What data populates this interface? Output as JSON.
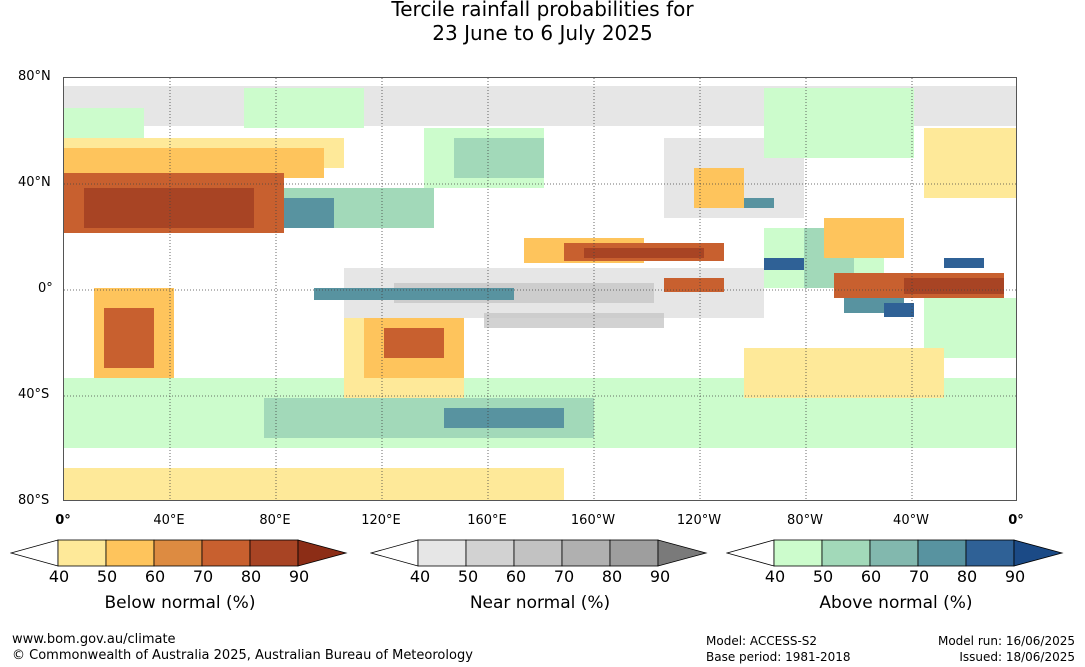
{
  "title": {
    "line1": "Tercile rainfall probabilities for",
    "line2": "23 June to 6 July 2025"
  },
  "axes": {
    "lat_labels": [
      "80°N",
      "40°N",
      "0°",
      "40°S",
      "80°S"
    ],
    "lon_labels": [
      "0°",
      "40°E",
      "80°E",
      "120°E",
      "160°E",
      "160°W",
      "120°W",
      "80°W",
      "40°W",
      "0°"
    ]
  },
  "legends": [
    {
      "title": "Below normal (%)",
      "ticks": [
        "40",
        "50",
        "60",
        "70",
        "80",
        "90"
      ],
      "colors": [
        "#ffffff",
        "#fee999",
        "#fec45c",
        "#dd8b41",
        "#c8602f",
        "#a84424",
        "#8c2d16"
      ]
    },
    {
      "title": "Near normal (%)",
      "ticks": [
        "40",
        "50",
        "60",
        "70",
        "80",
        "90"
      ],
      "colors": [
        "#ffffff",
        "#e6e6e6",
        "#d2d2d2",
        "#c2c2c2",
        "#b0b0b0",
        "#9e9e9e",
        "#7a7a7a"
      ]
    },
    {
      "title": "Above normal (%)",
      "ticks": [
        "40",
        "50",
        "60",
        "70",
        "80",
        "90"
      ],
      "colors": [
        "#ffffff",
        "#ccfccc",
        "#a2d9b9",
        "#82b8ae",
        "#5893a0",
        "#2f6196",
        "#1b4a86"
      ]
    }
  ],
  "footer": {
    "url": "www.bom.gov.au/climate",
    "copyright": "© Commonwealth of Australia 2025, Australian Bureau of Meteorology",
    "model": "Model: ACCESS-S2",
    "base_period": "Base period: 1981-2018",
    "model_run": "Model run: 16/06/2025",
    "issued": "Issued: 18/06/2025"
  }
}
